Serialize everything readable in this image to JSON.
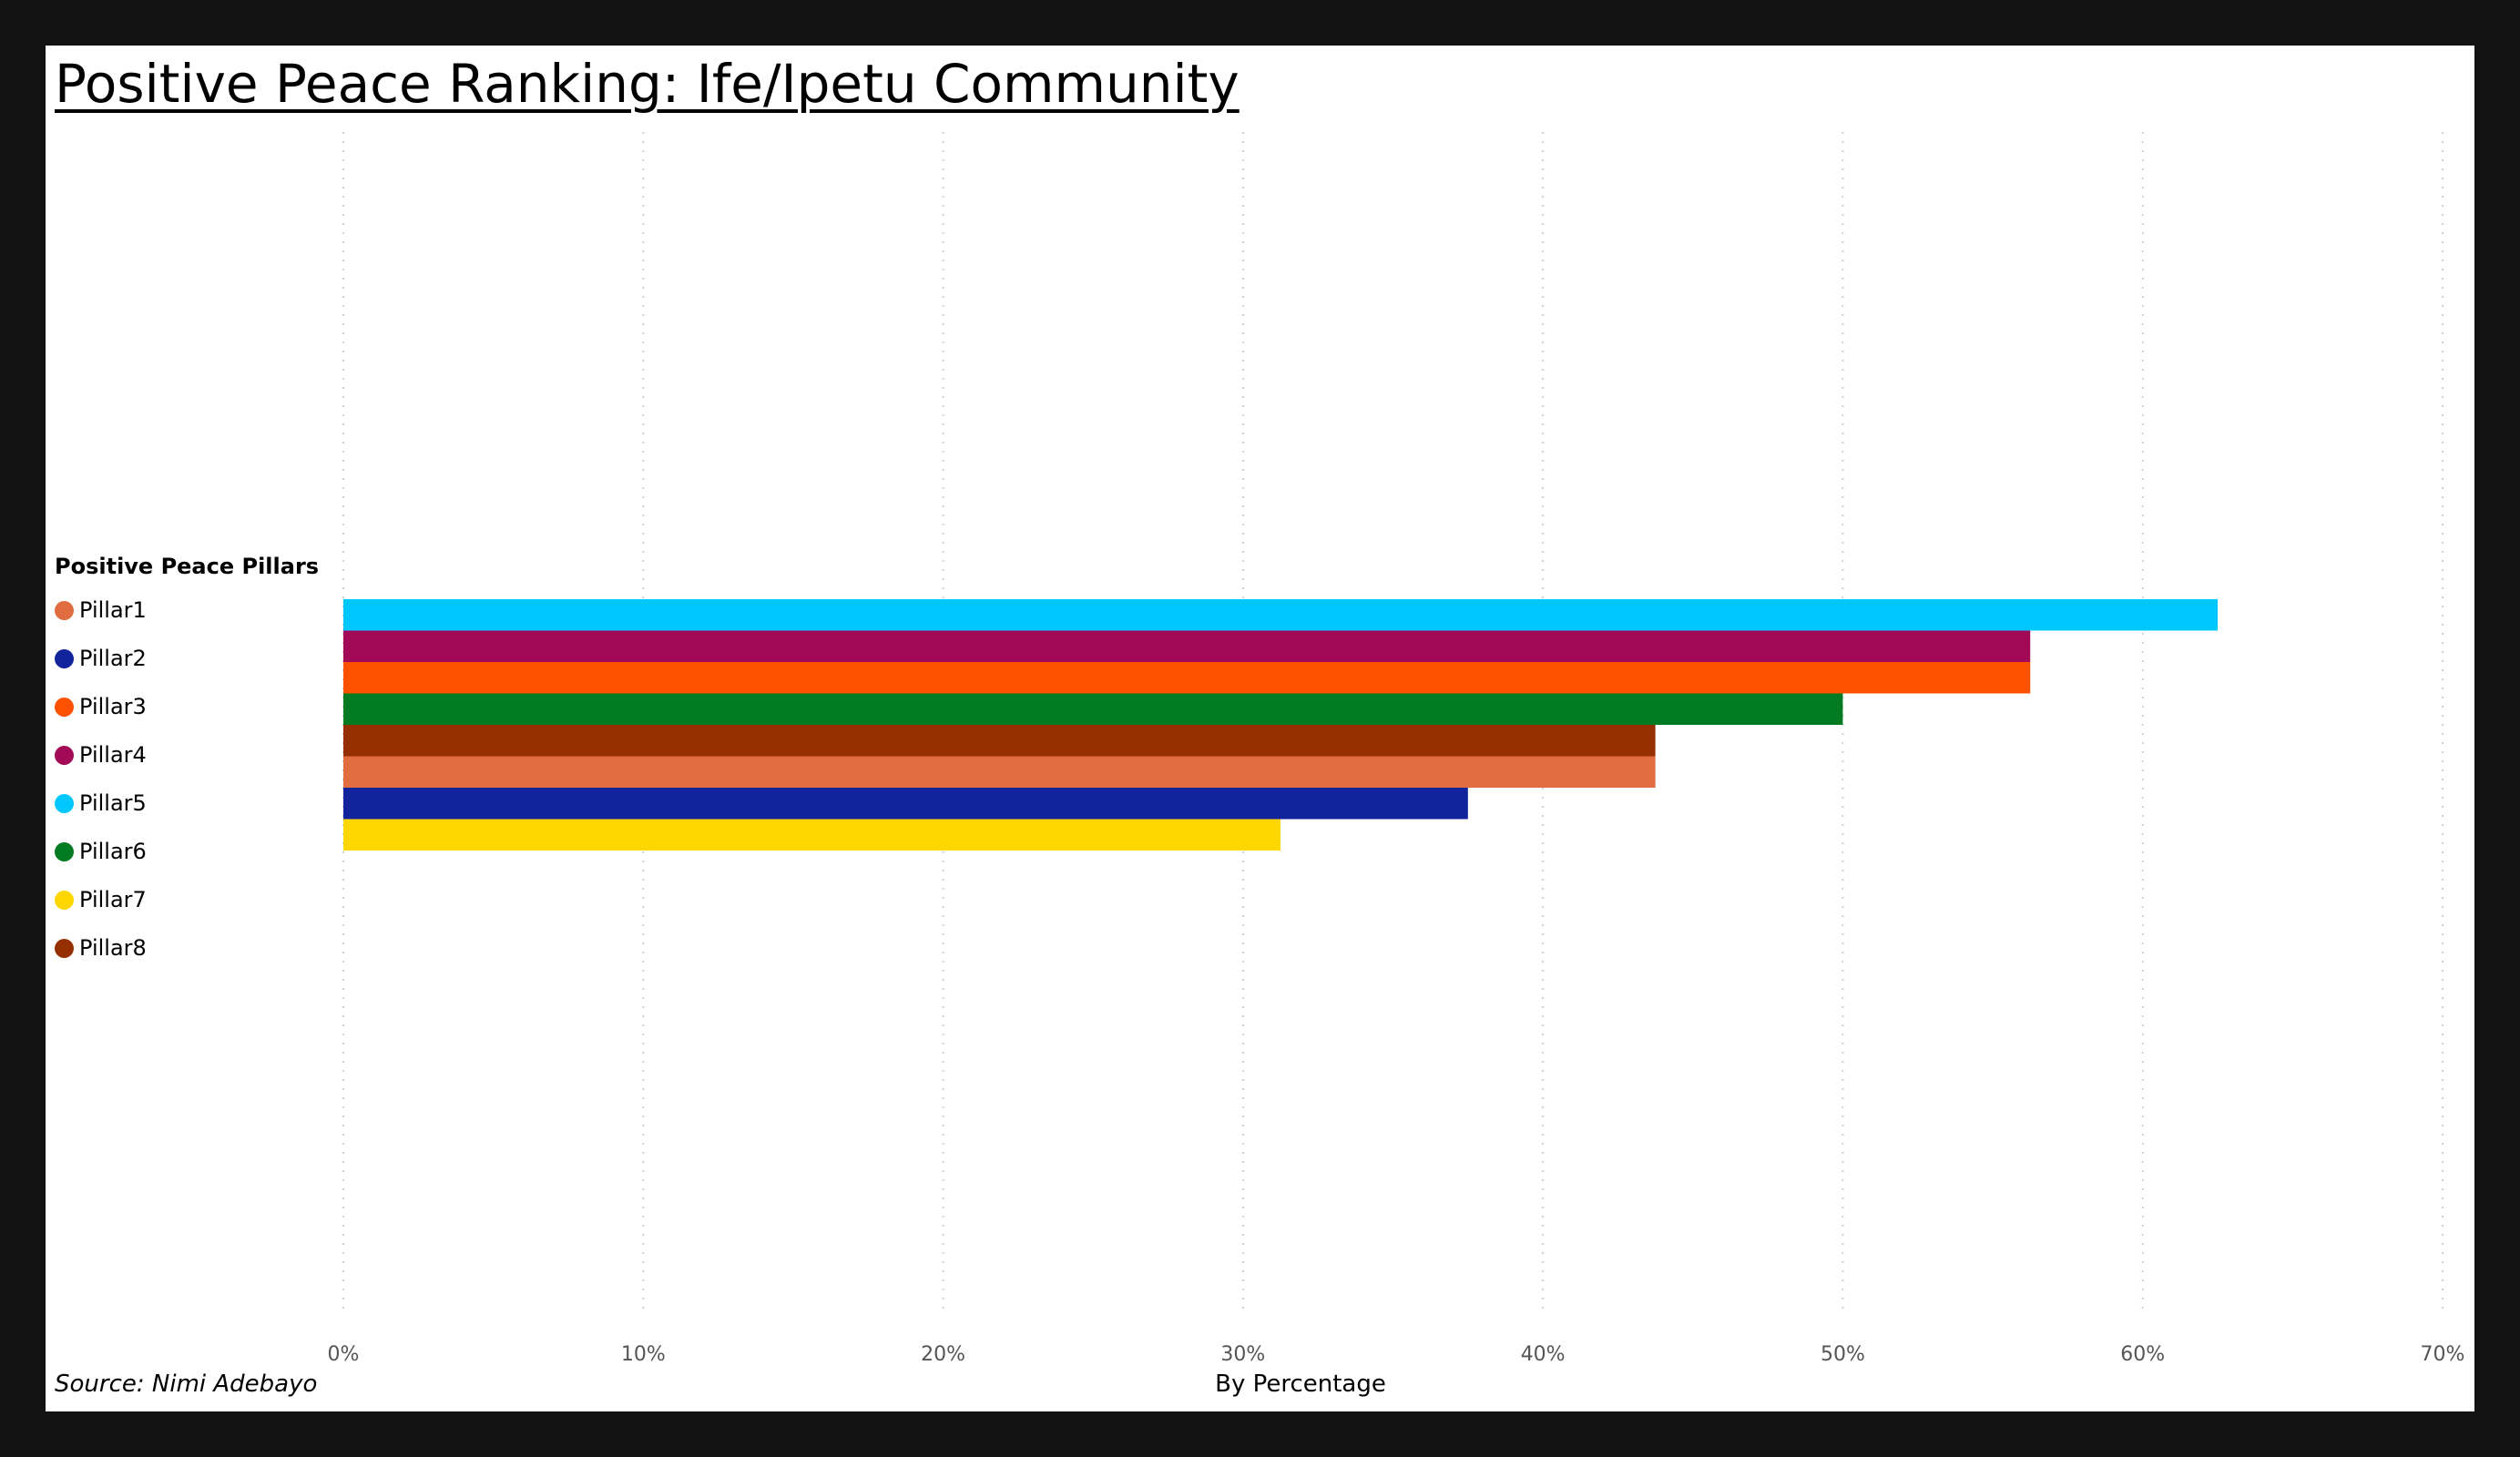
{
  "chart_data": {
    "type": "bar",
    "orientation": "horizontal",
    "title": "Positive Peace Ranking: Ife/Ipetu Community",
    "xlabel": "By Percentage",
    "source": "Source: Nimi Adebayo",
    "legend_title": "Positive Peace Pillars",
    "legend_position": "left",
    "grid": true,
    "xlim": [
      0,
      70
    ],
    "x_ticks": [
      {
        "value": 0,
        "label": "0%"
      },
      {
        "value": 10,
        "label": "10%"
      },
      {
        "value": 20,
        "label": "20%"
      },
      {
        "value": 30,
        "label": "30%"
      },
      {
        "value": 40,
        "label": "40%"
      },
      {
        "value": 50,
        "label": "50%"
      },
      {
        "value": 60,
        "label": "60%"
      },
      {
        "value": 70,
        "label": "70%"
      }
    ],
    "series": [
      {
        "name": "Pillar1",
        "color": "#E06C3F",
        "value": 43.75
      },
      {
        "name": "Pillar2",
        "color": "#12239E",
        "value": 37.5
      },
      {
        "name": "Pillar3",
        "color": "#FE5100",
        "value": 56.25
      },
      {
        "name": "Pillar4",
        "color": "#A20A58",
        "value": 56.25
      },
      {
        "name": "Pillar5",
        "color": "#00C8FF",
        "value": 62.5
      },
      {
        "name": "Pillar6",
        "color": "#027B22",
        "value": 50
      },
      {
        "name": "Pillar7",
        "color": "#FFD700",
        "value": 31.25
      },
      {
        "name": "Pillar8",
        "color": "#962F00",
        "value": 43.75
      }
    ],
    "bar_order": [
      "Pillar5",
      "Pillar4",
      "Pillar3",
      "Pillar6",
      "Pillar8",
      "Pillar1",
      "Pillar2",
      "Pillar7"
    ]
  }
}
